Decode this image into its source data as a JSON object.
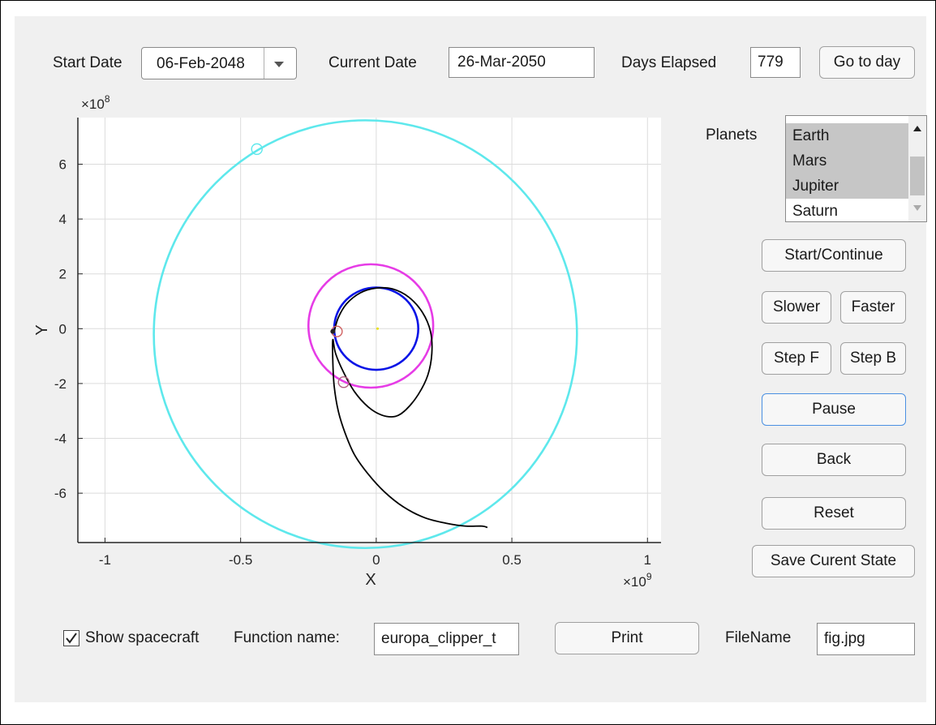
{
  "top_bar": {
    "start_date_label": "Start Date",
    "start_date_value": "06-Feb-2048",
    "current_date_label": "Current Date",
    "current_date_value": "26-Mar-2050",
    "days_elapsed_label": "Days Elapsed",
    "days_elapsed_value": "779",
    "go_to_day_label": "Go to day"
  },
  "planets": {
    "label": "Planets",
    "items": [
      {
        "label": "Earth",
        "selected": true
      },
      {
        "label": "Mars",
        "selected": true
      },
      {
        "label": "Jupiter",
        "selected": true
      },
      {
        "label": "Saturn",
        "selected": false
      }
    ]
  },
  "controls": {
    "start_continue": "Start/Continue",
    "slower": "Slower",
    "faster": "Faster",
    "step_f": "Step F",
    "step_b": "Step B",
    "pause": "Pause",
    "back": "Back",
    "reset": "Reset",
    "save_state": "Save Curent State"
  },
  "bottom_bar": {
    "show_spacecraft_label": "Show spacecraft",
    "show_spacecraft_checked": true,
    "function_name_label": "Function name:",
    "function_name_value": "europa_clipper_t",
    "print_label": "Print",
    "filename_label": "FileName",
    "filename_value": "fig.jpg"
  },
  "chart_data": {
    "type": "line",
    "xlabel": "X",
    "ylabel": "Y",
    "x_exponent": "×10",
    "x_exponent_power": "9",
    "y_exponent": "×10",
    "y_exponent_power": "8",
    "xlim": [
      -1.1,
      1.05
    ],
    "ylim": [
      -7.8,
      7.7
    ],
    "x_ticks": [
      -1,
      -0.5,
      0,
      0.5,
      1
    ],
    "x_tick_labels": [
      "-1",
      "-0.5",
      "0",
      "0.5",
      "1"
    ],
    "y_ticks": [
      -6,
      -4,
      -2,
      0,
      2,
      4,
      6
    ],
    "y_tick_labels": [
      "-6",
      "-4",
      "-2",
      "0",
      "2",
      "4",
      "6"
    ],
    "grid": true,
    "orbits": [
      {
        "cx": 0,
        "cy": 0,
        "rx": 0.155,
        "ry": 1.5,
        "color": "#0a14e6"
      },
      {
        "cx": -0.02,
        "cy": 0.1,
        "rx": 0.23,
        "ry": 2.25,
        "color": "#e63ce6"
      },
      {
        "cx": -0.04,
        "cy": -0.2,
        "rx": 0.78,
        "ry": 7.8,
        "color": "#5ee8ec"
      }
    ],
    "markers": [
      {
        "x": -0.44,
        "y": 6.55,
        "color": "#5ee8ec"
      },
      {
        "x": -0.145,
        "y": -0.1,
        "color": "#d06060"
      },
      {
        "x": -0.12,
        "y": -1.95,
        "color": "#b06080"
      }
    ],
    "trajectory": {
      "color": "#000000",
      "x": [
        -0.155,
        -0.14,
        -0.11,
        -0.06,
        0.0,
        0.06,
        0.12,
        0.17,
        0.2,
        0.205,
        0.19,
        0.155,
        0.11,
        0.07,
        0.02,
        -0.03,
        -0.08,
        -0.12,
        -0.15,
        -0.16,
        -0.16,
        -0.155,
        -0.14,
        -0.115,
        -0.08,
        -0.03,
        0.03,
        0.1,
        0.18,
        0.26,
        0.33,
        0.39,
        0.41
      ],
      "y": [
        -0.1,
        0.4,
        0.9,
        1.3,
        1.48,
        1.45,
        1.15,
        0.6,
        -0.1,
        -0.9,
        -1.7,
        -2.4,
        -2.95,
        -3.2,
        -3.15,
        -2.85,
        -2.3,
        -1.6,
        -0.9,
        -0.4,
        -1.2,
        -2.1,
        -3.0,
        -3.8,
        -4.6,
        -5.3,
        -5.95,
        -6.5,
        -6.9,
        -7.1,
        -7.2,
        -7.2,
        -7.25
      ]
    },
    "sun": {
      "x": 0.005,
      "y": 0,
      "color": "#e8e000"
    }
  }
}
